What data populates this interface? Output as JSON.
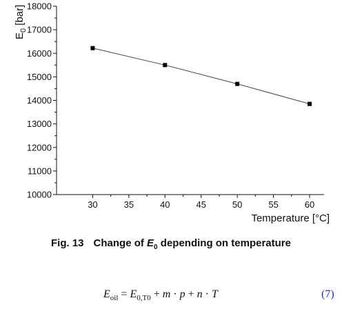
{
  "chart_data": {
    "type": "line",
    "x": [
      30,
      40,
      50,
      60
    ],
    "series": [
      {
        "values": [
          16220,
          15500,
          14700,
          13850
        ]
      }
    ],
    "xlabel": "Temperature [°C]",
    "ylabel": "E0 [bar]",
    "xlim": [
      25,
      62
    ],
    "ylim": [
      10000,
      18000
    ],
    "xticks": [
      "30",
      "35",
      "40",
      "45",
      "50",
      "55",
      "60"
    ],
    "yticks": [
      "10000",
      "11000",
      "12000",
      "13000",
      "14000",
      "15000",
      "16000",
      "17000",
      "18000"
    ],
    "marker": "square",
    "grid": false,
    "colors": {
      "line": "#444444",
      "marker": "#000000"
    }
  },
  "caption": {
    "fig_label": "Fig. 13",
    "text_before": "Change of ",
    "symbol": "E",
    "symbol_sub": "0",
    "text_after": " depending on temperature"
  },
  "equation": {
    "lhs": "E",
    "lhs_sub": "oil",
    "eq": " = ",
    "term1": "E",
    "term1_sub": "0,T0",
    "plus1": " + ",
    "m": "m",
    "dot1": " · ",
    "p": "p",
    "plus2": " + ",
    "n": "n",
    "dot2": " · ",
    "T": "T",
    "number": "(7)"
  }
}
